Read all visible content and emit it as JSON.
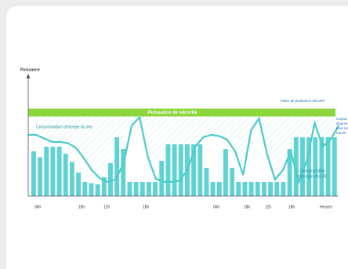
{
  "chart_data": {
    "type": "bar",
    "y_label": "Puissance",
    "x_label": "Heures",
    "time_labels": [
      "06h",
      "18h",
      "12h",
      "18h",
      "06h",
      "18h",
      "12h",
      "18h"
    ],
    "ylim": [
      0,
      100
    ],
    "threshold": {
      "label": "Puissance de sécurité",
      "value": 71,
      "color": "#8cd63c"
    },
    "threshold_note": "Palier de puissance sécurité",
    "capacity_note": [
      "Capaci",
      "disponi",
      "pour les",
      "transit"
    ],
    "series": [
      {
        "name": "Consommation d'énergie du site",
        "type": "line",
        "color": "#4ccaca",
        "values": [
          52,
          52,
          49,
          46,
          46,
          45,
          41,
          32,
          22,
          15,
          12,
          14,
          28,
          60,
          67,
          34,
          15,
          12,
          12,
          13,
          22,
          42,
          50,
          52,
          51,
          48,
          38,
          18,
          56,
          66,
          36,
          14,
          22,
          38,
          12,
          30,
          62,
          42,
          48,
          60
        ]
      },
      {
        "name_lines": [
          "Consommation",
          "d'énergie des VE"
        ],
        "type": "bar",
        "color": "#5fd3d3",
        "values": [
          38,
          33,
          42,
          42,
          42,
          36,
          29,
          20,
          12,
          11,
          10,
          16,
          28,
          50,
          40,
          12,
          12,
          12,
          12,
          12,
          30,
          44,
          44,
          44,
          44,
          44,
          44,
          24,
          12,
          12,
          40,
          24,
          12,
          12,
          12,
          12,
          12,
          12,
          12,
          12,
          40,
          50,
          50,
          50,
          50,
          50,
          50,
          50
        ]
      }
    ]
  }
}
